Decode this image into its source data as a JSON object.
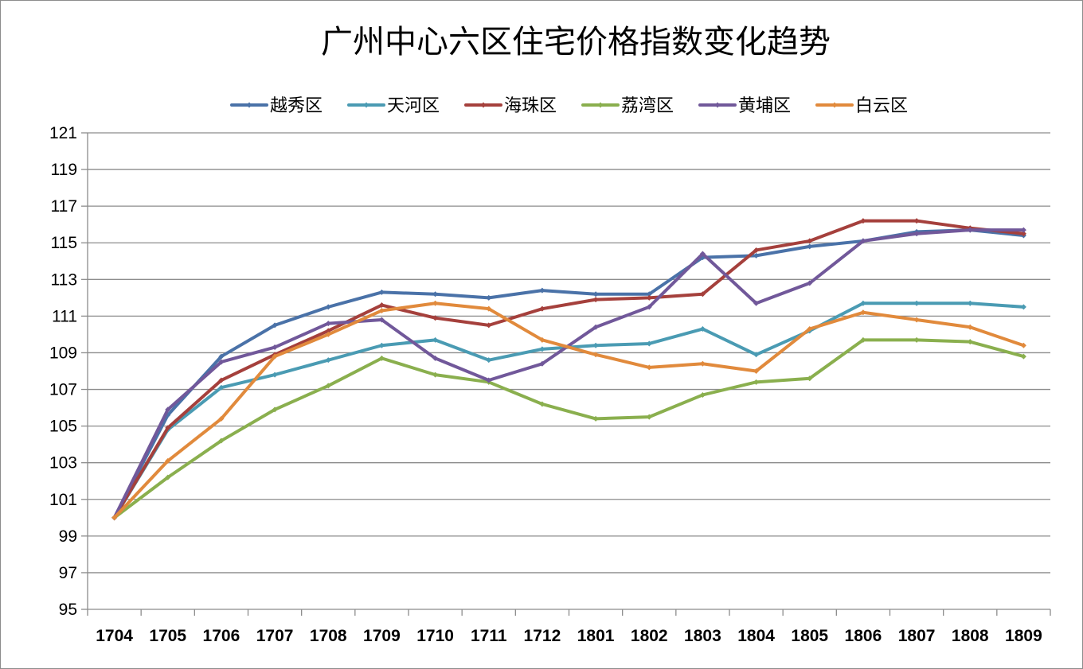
{
  "chart_data": {
    "type": "line",
    "title": "广州中心六区住宅价格指数变化趋势",
    "xlabel": "",
    "ylabel": "",
    "ylim": [
      95,
      121
    ],
    "ytick_step": 2,
    "grid": true,
    "legend_position": "top",
    "categories": [
      "1704",
      "1705",
      "1706",
      "1707",
      "1708",
      "1709",
      "1710",
      "1711",
      "1712",
      "1801",
      "1802",
      "1803",
      "1804",
      "1805",
      "1806",
      "1807",
      "1808",
      "1809"
    ],
    "series": [
      {
        "name": "越秀区",
        "color": "#4a72a8",
        "values": [
          100,
          105.6,
          108.8,
          110.5,
          111.5,
          112.3,
          112.2,
          112.0,
          112.4,
          112.2,
          112.2,
          114.2,
          114.3,
          114.8,
          115.1,
          115.6,
          115.7,
          115.4
        ]
      },
      {
        "name": "天河区",
        "color": "#4a9bb3",
        "values": [
          100,
          104.8,
          107.1,
          107.8,
          108.6,
          109.4,
          109.7,
          108.6,
          109.2,
          109.4,
          109.5,
          110.3,
          108.9,
          110.2,
          111.7,
          111.7,
          111.7,
          111.5
        ]
      },
      {
        "name": "海珠区",
        "color": "#a5403c",
        "values": [
          100,
          104.9,
          107.5,
          108.9,
          110.2,
          111.6,
          110.9,
          110.5,
          111.4,
          111.9,
          112.0,
          112.2,
          114.6,
          115.1,
          116.2,
          116.2,
          115.8,
          115.5
        ]
      },
      {
        "name": "荔湾区",
        "color": "#8aaf4e",
        "values": [
          100,
          102.2,
          104.2,
          105.9,
          107.2,
          108.7,
          107.8,
          107.4,
          106.2,
          105.4,
          105.5,
          106.7,
          107.4,
          107.6,
          109.7,
          109.7,
          109.6,
          108.8
        ]
      },
      {
        "name": "黄埔区",
        "color": "#71589a",
        "values": [
          100,
          105.9,
          108.5,
          109.3,
          110.6,
          110.8,
          108.7,
          107.5,
          108.4,
          110.4,
          111.5,
          114.4,
          111.7,
          112.8,
          115.1,
          115.5,
          115.7,
          115.7
        ]
      },
      {
        "name": "白云区",
        "color": "#e18a3c",
        "values": [
          100,
          103.1,
          105.4,
          108.8,
          110.0,
          111.3,
          111.7,
          111.4,
          109.7,
          108.9,
          108.2,
          108.4,
          108.0,
          110.3,
          111.2,
          110.8,
          110.4,
          109.4
        ]
      }
    ]
  }
}
